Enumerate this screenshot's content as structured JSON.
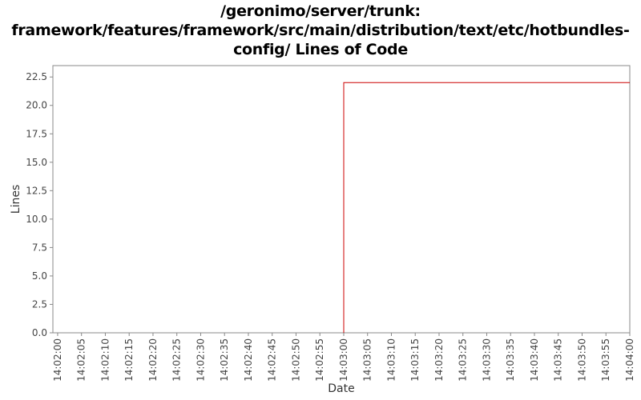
{
  "chart_data": {
    "type": "line",
    "title_lines": [
      "/geronimo/server/trunk:",
      "framework/features/framework/src/main/distribution/text/etc/hotbundles-",
      "config/ Lines of Code"
    ],
    "xlabel": "Date",
    "ylabel": "Lines",
    "x_ticks": [
      "14:02:00",
      "14:02:05",
      "14:02:10",
      "14:02:15",
      "14:02:20",
      "14:02:25",
      "14:02:30",
      "14:02:35",
      "14:02:40",
      "14:02:45",
      "14:02:50",
      "14:02:55",
      "14:03:00",
      "14:03:05",
      "14:03:10",
      "14:03:15",
      "14:03:20",
      "14:03:25",
      "14:03:30",
      "14:03:35",
      "14:03:40",
      "14:03:45",
      "14:03:50",
      "14:03:55",
      "14:04:00"
    ],
    "y_ticks": [
      "0.0",
      "2.5",
      "5.0",
      "7.5",
      "10.0",
      "12.5",
      "15.0",
      "17.5",
      "20.0",
      "22.5"
    ],
    "ylim": [
      0,
      23.5
    ],
    "xlim": [
      "14:01:59",
      "14:04:00"
    ],
    "grid": false,
    "series": [
      {
        "color": "#cc0000",
        "points": [
          {
            "x": "14:03:00",
            "y": 0
          },
          {
            "x": "14:03:00",
            "y": 22
          },
          {
            "x": "14:04:00",
            "y": 22
          }
        ]
      }
    ]
  }
}
